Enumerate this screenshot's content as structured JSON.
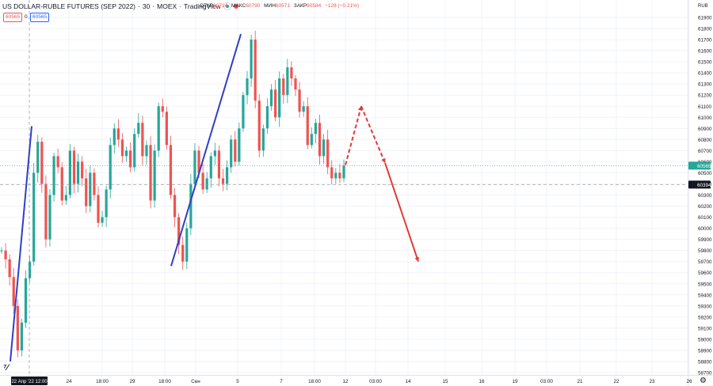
{
  "header": {
    "title": "US DOLLAR-RUBLE FUTURES (SEP 2022)",
    "interval": "30",
    "exchange": "MOEX",
    "source": "TradingView",
    "status_dot_color": "#26a69a",
    "status_dot2_color": "#ef5350"
  },
  "ohlc": {
    "open_label": "ОТКР",
    "open": "60714",
    "high_label": "МАКС",
    "high": "60790",
    "low_label": "МИН",
    "low": "60571",
    "close_label": "ЗАКР",
    "close": "60584",
    "change": "−128 (−0.21%)"
  },
  "price_boxes": {
    "left": "60565",
    "middle": "0",
    "right": "60565"
  },
  "price_axis": {
    "currency": "RUB",
    "current_price_label": "60565",
    "crosshair_price_label": "60394"
  },
  "time_axis": {
    "crosshair_label": "22 Апр '22   12:00"
  },
  "chart_data": {
    "type": "candlestick",
    "ylim": [
      58700,
      62000
    ],
    "yticks": [
      58700,
      58800,
      58900,
      59000,
      59100,
      59200,
      59300,
      59400,
      59500,
      59600,
      59700,
      59800,
      59900,
      60000,
      60100,
      60200,
      60300,
      60400,
      60500,
      60600,
      60700,
      60800,
      60900,
      61000,
      61100,
      61200,
      61300,
      61400,
      61500,
      61600,
      61700,
      61800,
      61900
    ],
    "x_ticks": [
      "24",
      "18:00",
      "29",
      "18:00",
      "Сен",
      "5",
      "7",
      "18:00",
      "12",
      "03:00",
      "14",
      "15",
      "16",
      "19",
      "03:00",
      "21",
      "22",
      "23",
      "26"
    ],
    "current_price": 60565,
    "crosshair_price": 60394,
    "path_points": [
      [
        0,
        59800
      ],
      [
        1,
        59720
      ],
      [
        2,
        59560
      ],
      [
        3,
        59300
      ],
      [
        4,
        58900
      ],
      [
        5,
        59150
      ],
      [
        6,
        59550
      ],
      [
        7,
        59700
      ],
      [
        8,
        60500
      ],
      [
        9,
        60780
      ],
      [
        10,
        60400
      ],
      [
        11,
        59900
      ],
      [
        12,
        60300
      ],
      [
        13,
        60650
      ],
      [
        14,
        60550
      ],
      [
        15,
        60250
      ],
      [
        16,
        60300
      ],
      [
        17,
        60700
      ],
      [
        18,
        60400
      ],
      [
        19,
        60600
      ],
      [
        20,
        60450
      ],
      [
        21,
        60200
      ],
      [
        22,
        60500
      ],
      [
        23,
        60300
      ],
      [
        24,
        60050
      ],
      [
        25,
        60100
      ],
      [
        26,
        60350
      ],
      [
        27,
        60750
      ],
      [
        28,
        60900
      ],
      [
        29,
        60800
      ],
      [
        30,
        60650
      ],
      [
        31,
        60700
      ],
      [
        32,
        60550
      ],
      [
        33,
        60850
      ],
      [
        34,
        60950
      ],
      [
        35,
        60650
      ],
      [
        36,
        60750
      ],
      [
        37,
        60250
      ],
      [
        38,
        60700
      ],
      [
        39,
        61100
      ],
      [
        40,
        61050
      ],
      [
        41,
        60750
      ],
      [
        42,
        60300
      ],
      [
        43,
        60100
      ],
      [
        44,
        59850
      ],
      [
        45,
        59700
      ],
      [
        46,
        60000
      ],
      [
        47,
        60400
      ],
      [
        48,
        60700
      ],
      [
        49,
        60500
      ],
      [
        50,
        60350
      ],
      [
        51,
        60450
      ],
      [
        52,
        60650
      ],
      [
        53,
        60700
      ],
      [
        54,
        60450
      ],
      [
        55,
        60400
      ],
      [
        56,
        60550
      ],
      [
        57,
        60800
      ],
      [
        58,
        60600
      ],
      [
        59,
        60900
      ],
      [
        60,
        61200
      ],
      [
        61,
        61350
      ],
      [
        62,
        61700
      ],
      [
        63,
        61150
      ],
      [
        64,
        60700
      ],
      [
        65,
        60900
      ],
      [
        66,
        61100
      ],
      [
        67,
        61250
      ],
      [
        68,
        61000
      ],
      [
        69,
        61350
      ],
      [
        70,
        61200
      ],
      [
        71,
        61450
      ],
      [
        72,
        61350
      ],
      [
        73,
        61250
      ],
      [
        74,
        61050
      ],
      [
        75,
        61100
      ],
      [
        76,
        60750
      ],
      [
        77,
        60850
      ],
      [
        78,
        60950
      ],
      [
        79,
        60650
      ],
      [
        80,
        60800
      ],
      [
        81,
        60550
      ],
      [
        82,
        60450
      ],
      [
        83,
        60500
      ],
      [
        84,
        60450
      ],
      [
        85,
        60565
      ]
    ],
    "annotations": {
      "blue_lines": [
        {
          "from": [
            13,
            58800
          ],
          "to": [
            40,
            60920
          ]
        },
        {
          "from": [
            216,
            59660
          ],
          "to": [
            304,
            61750
          ]
        }
      ],
      "red_dashed": [
        {
          "from": [
            436,
            60570
          ],
          "to": [
            456,
            61100
          ]
        },
        {
          "from": [
            456,
            61100
          ],
          "to": [
            486,
            60590
          ]
        }
      ],
      "red_solid": {
        "from": [
          486,
          60590
        ],
        "to": [
          528,
          59700
        ]
      }
    }
  }
}
